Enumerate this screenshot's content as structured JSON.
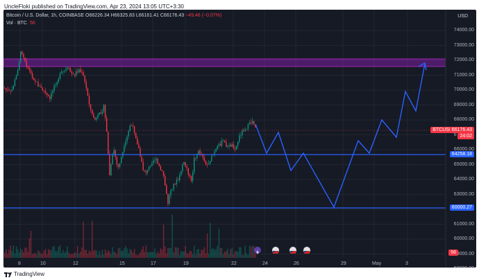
{
  "header": {
    "published_by": "UncleFloki published on TradingView.com, Apr 23, 2024 13:05 UTC+3:30"
  },
  "legend": {
    "symbol": "Bitcoin / U.S. Dollar, 1h, COINBASE",
    "o": "O66226.34",
    "h": "H66325.83",
    "l": "L66161.41",
    "c": "C66176.43",
    "change": "−49.46 (−0.07%)",
    "vol_label": "Vol · BTC",
    "vol_value": "56"
  },
  "axis": {
    "currency": "USD",
    "price_ticks": [
      "74000.00",
      "73000.00",
      "72000.00",
      "71000.00",
      "70000.00",
      "69000.00",
      "68000.00",
      "67000.00",
      "66000.00",
      "65000.00",
      "64000.00",
      "63000.00",
      "62000.00",
      "61000.00",
      "60000.00",
      "59000.00",
      "58000.00",
      "57000.00"
    ],
    "date_ticks": [
      "8",
      "10",
      "12",
      "15",
      "17",
      "19",
      "22",
      "24",
      "26",
      "29",
      "May",
      "3"
    ]
  },
  "tags": {
    "symbol_tag": "BTCUSD",
    "last_price": "66176.43",
    "countdown": "24:02",
    "level_1": "64258.18",
    "level_2": "60000.27",
    "volume_tag": "56"
  },
  "footer": {
    "brand": "TradingView"
  },
  "colors": {
    "up": "#089981",
    "down": "#f23645",
    "zone": "#7b1fa2",
    "projection": "#2962ff"
  }
}
